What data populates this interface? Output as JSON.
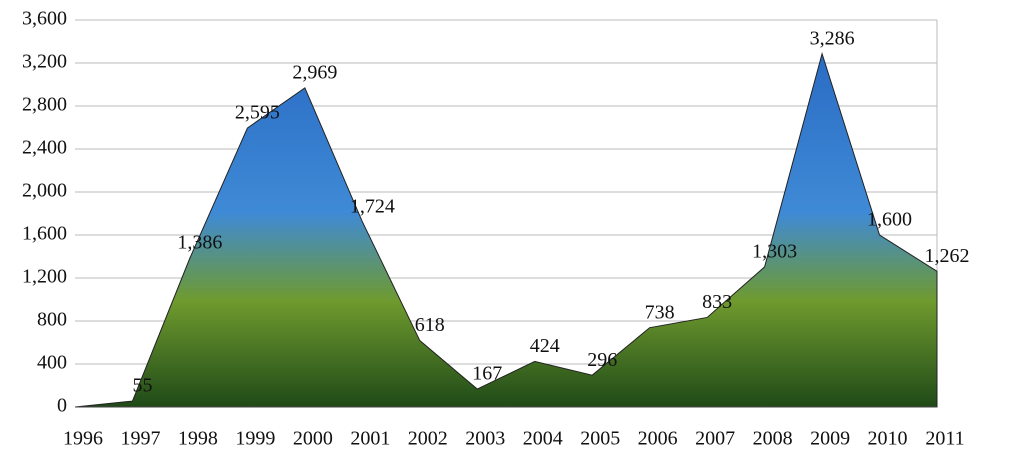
{
  "chart_data": {
    "type": "area",
    "categories": [
      "1996",
      "1997",
      "1998",
      "1999",
      "2000",
      "2001",
      "2002",
      "2003",
      "2004",
      "2005",
      "2006",
      "2007",
      "2008",
      "2009",
      "2010",
      "2011"
    ],
    "values": [
      0,
      55,
      1386,
      2595,
      2969,
      1724,
      618,
      167,
      424,
      296,
      738,
      833,
      1303,
      3286,
      1600,
      1262
    ],
    "value_labels": [
      null,
      "55",
      "1,386",
      "2,595",
      "2,969",
      "1,724",
      "618",
      "167",
      "424",
      "296",
      "738",
      "833",
      "1,303",
      "3,286",
      "1,600",
      "1,262"
    ],
    "color": "#2a6cc4",
    "ylim": [
      0,
      3600
    ],
    "yticks": [
      0,
      400,
      800,
      {
        "value": 1200,
        "label": "1,200"
      },
      {
        "value": 1600,
        "label": "1,600"
      },
      {
        "value": 2000,
        "label": "2,000"
      },
      {
        "value": 2400,
        "label": "2,400"
      },
      {
        "value": 2800,
        "label": "2,800"
      },
      {
        "value": 3200,
        "label": "3,200"
      },
      {
        "value": 3600,
        "label": "3,600"
      }
    ],
    "grid": true
  }
}
